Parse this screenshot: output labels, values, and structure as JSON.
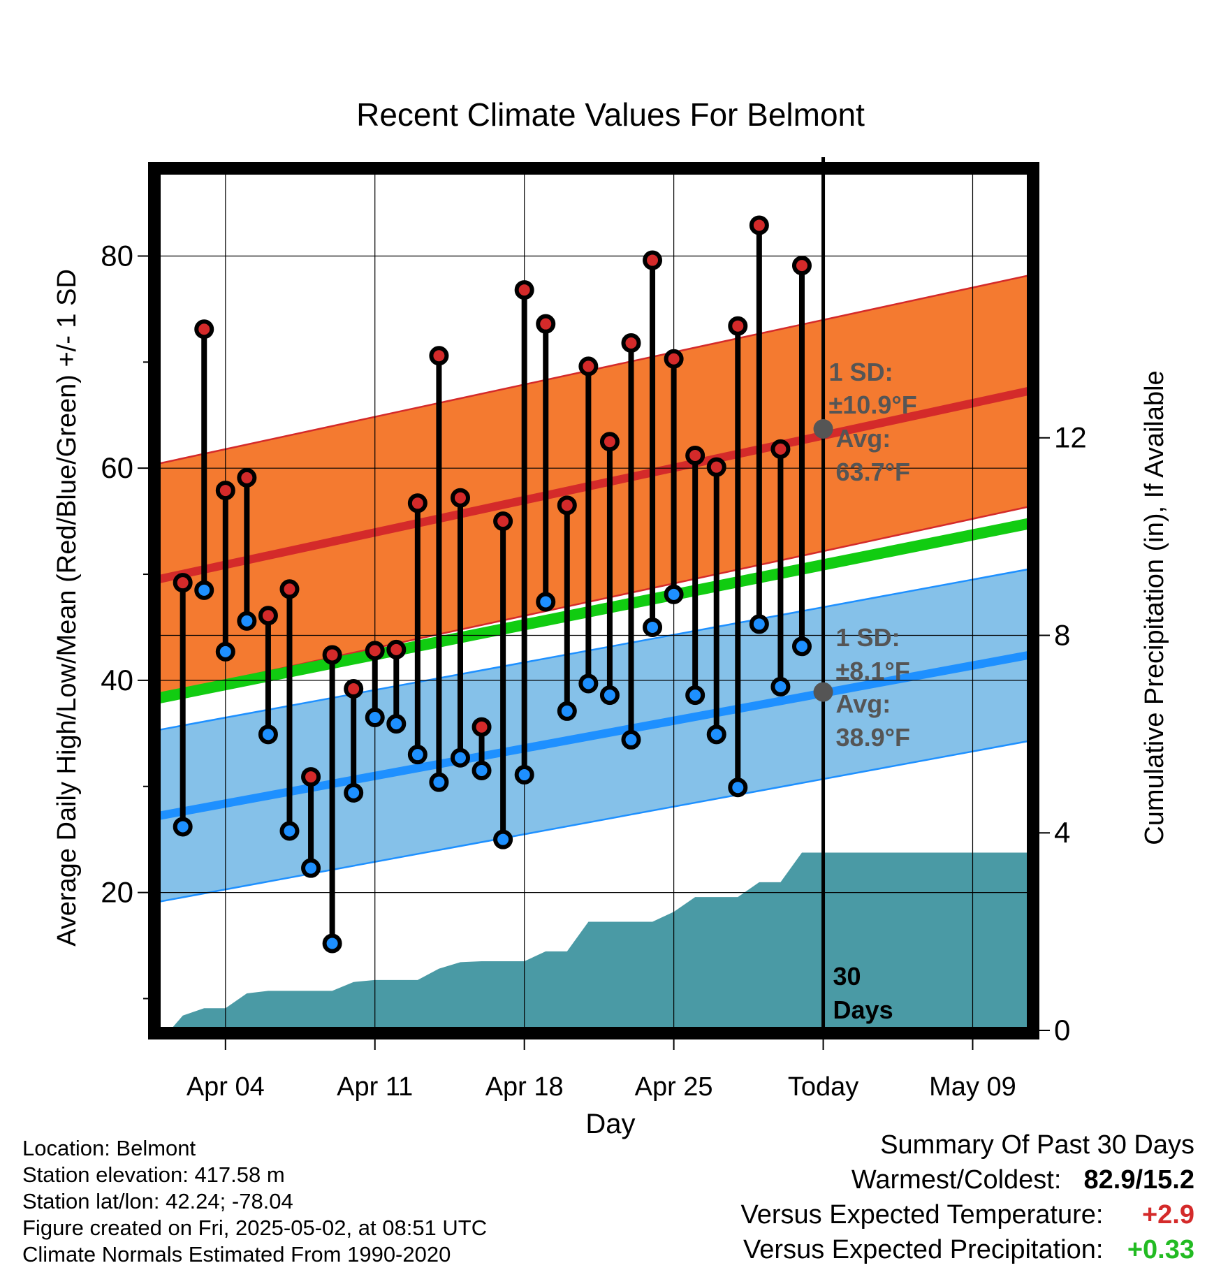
{
  "chart_data": {
    "type": "line",
    "title": "Recent Climate Values For Belmont",
    "xlabel": "Day",
    "ylabel_left": "Average Daily High/Low/Mean (Red/Blue/Green) +/- 1 SD",
    "ylabel_right": "Cumulative Precipitation (in), If Available",
    "x_ticks": [
      "Apr 04",
      "Apr 11",
      "Apr 18",
      "Apr 25",
      "Today",
      "May 09"
    ],
    "x_tick_days": [
      4,
      11,
      18,
      25,
      32,
      39
    ],
    "x_range_days": [
      0.8,
      41.7
    ],
    "ylim_left": [
      7,
      88
    ],
    "y_ticks_left": [
      20,
      40,
      60,
      80
    ],
    "ylim_right": [
      0,
      17.4
    ],
    "y_ticks_right": [
      0,
      4,
      8,
      12
    ],
    "today_day": 32,
    "days_label": "30 Days",
    "grid": true,
    "normals": {
      "high_mean_start": 49.5,
      "high_mean_end": 67.3,
      "high_sd": 10.9,
      "low_mean_start": 27.2,
      "low_mean_end": 42.4,
      "low_sd": 8.1,
      "mean_start": 38.3,
      "mean_end": 54.8
    },
    "annotations": {
      "high_sd_label": "1 SD:",
      "high_sd_value": "±10.9°F",
      "high_avg_label": "Avg:",
      "high_avg_value": "63.7°F",
      "high_avg_at_today": 63.7,
      "low_sd_label": "1 SD:",
      "low_sd_value": "±8.1°F",
      "low_avg_label": "Avg:",
      "low_avg_value": "38.9°F",
      "low_avg_at_today": 38.9
    },
    "series": [
      {
        "name": "High",
        "color": "#d42a2a",
        "x": [
          2,
          3,
          4,
          5,
          6,
          7,
          8,
          9,
          10,
          11,
          12,
          13,
          14,
          15,
          16,
          17,
          18,
          19,
          20,
          21,
          22,
          23,
          24,
          25,
          26,
          27,
          28,
          29,
          30,
          31
        ],
        "values": [
          49.2,
          73.1,
          57.9,
          59.1,
          46.1,
          48.6,
          30.9,
          42.4,
          39.2,
          42.8,
          42.9,
          56.7,
          70.6,
          57.2,
          35.6,
          55.0,
          76.8,
          73.6,
          56.5,
          69.6,
          62.5,
          71.8,
          79.6,
          70.3,
          61.2,
          60.1,
          73.4,
          82.9,
          61.8,
          79.1
        ]
      },
      {
        "name": "Low",
        "color": "#1e90ff",
        "x": [
          2,
          3,
          4,
          5,
          6,
          7,
          8,
          9,
          10,
          11,
          12,
          13,
          14,
          15,
          16,
          17,
          18,
          19,
          20,
          21,
          22,
          23,
          24,
          25,
          26,
          27,
          28,
          29,
          30,
          31
        ],
        "values": [
          26.2,
          48.5,
          42.7,
          45.6,
          34.9,
          25.8,
          22.3,
          15.2,
          29.4,
          36.5,
          35.9,
          33.0,
          30.4,
          32.7,
          31.5,
          25.0,
          31.1,
          47.4,
          37.1,
          39.7,
          38.6,
          34.4,
          45.0,
          48.1,
          38.6,
          34.9,
          29.9,
          45.3,
          39.4,
          43.2
        ]
      },
      {
        "name": "Cumulative Precipitation",
        "color": "#4a9aa5",
        "x": [
          1.5,
          2,
          3,
          4,
          5,
          6,
          7,
          8,
          9,
          10,
          11,
          12,
          13,
          14,
          15,
          16,
          17,
          18,
          19,
          20,
          21,
          22,
          23,
          24,
          25,
          26,
          27,
          28,
          29,
          30,
          31,
          32,
          41.7
        ],
        "values": [
          0.05,
          0.3,
          0.45,
          0.45,
          0.75,
          0.8,
          0.8,
          0.8,
          0.8,
          0.98,
          1.02,
          1.02,
          1.02,
          1.25,
          1.38,
          1.4,
          1.4,
          1.4,
          1.6,
          1.6,
          2.2,
          2.2,
          2.2,
          2.2,
          2.4,
          2.7,
          2.7,
          2.7,
          3.0,
          3.0,
          3.6,
          3.6,
          3.6
        ]
      }
    ]
  },
  "info": {
    "location": "Location: Belmont",
    "elevation": "Station elevation: 417.58 m",
    "latlon": "Station lat/lon: 42.24; -78.04",
    "created": "Figure created on Fri, 2025-05-02, at 08:51 UTC",
    "normals": "Climate Normals Estimated From 1990-2020"
  },
  "summary": {
    "heading": "Summary Of Past 30 Days",
    "warm_cold_label": "Warmest/Coldest:",
    "warm_cold_value": "82.9/15.2",
    "temp_label": "Versus Expected Temperature:",
    "temp_value": "+2.9",
    "temp_color": "#d42a2a",
    "precip_label": "Versus Expected Precipitation:",
    "precip_value": "+0.33",
    "precip_color": "#22bb22"
  },
  "colors": {
    "high_band": "#f47a30",
    "high_line": "#d42a2a",
    "low_band": "#85c1e9",
    "low_line": "#1e90ff",
    "mean_line": "#11cc11",
    "precip_fill": "#4a9aa5",
    "avg_dot": "#555555",
    "annotation_text": "#555555"
  }
}
